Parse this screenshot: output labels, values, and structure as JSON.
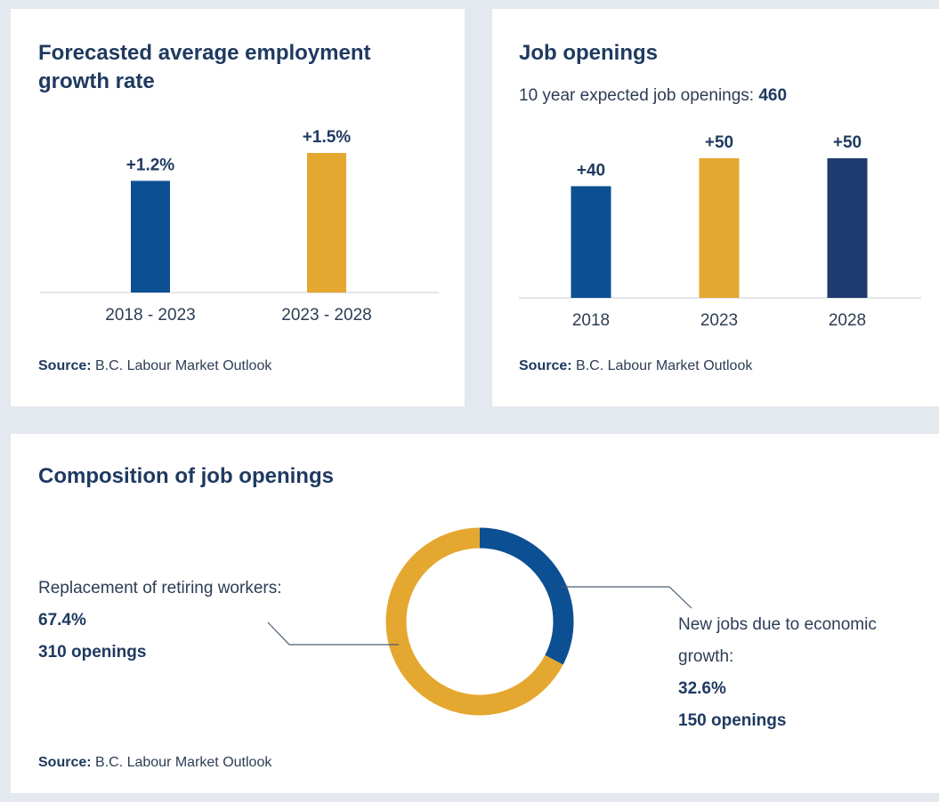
{
  "cards": {
    "growth": {
      "title_line1": "Forecasted average employment",
      "title_line2": "growth rate",
      "source_label": "Source:",
      "source_text": " B.C. Labour Market Outlook"
    },
    "openings": {
      "title": "Job openings",
      "subtitle_prefix": "10 year expected job openings: ",
      "subtitle_value": "460",
      "source_label": "Source:",
      "source_text": " B.C. Labour Market Outlook"
    },
    "composition": {
      "title": "Composition of job openings",
      "source_label": "Source:",
      "source_text": " B.C. Labour Market Outlook"
    }
  },
  "chart_data": [
    {
      "type": "bar",
      "title": "Forecasted average employment growth rate",
      "categories": [
        "2018 - 2023",
        "2023 - 2028"
      ],
      "values": [
        1.2,
        1.5
      ],
      "value_labels": [
        "+1.2%",
        "+1.5%"
      ],
      "colors": [
        "#0c4f92",
        "#e4a72f"
      ],
      "ylim": [
        0,
        1.5
      ],
      "grid": false
    },
    {
      "type": "bar",
      "title": "Job openings",
      "categories": [
        "2018",
        "2023",
        "2028"
      ],
      "values": [
        40,
        50,
        50
      ],
      "value_labels": [
        "+40",
        "+50",
        "+50"
      ],
      "colors": [
        "#0c4f92",
        "#e4a72f",
        "#1f3a6e"
      ],
      "ylim": [
        0,
        50
      ],
      "grid": false
    },
    {
      "type": "pie",
      "title": "Composition of job openings",
      "slices": [
        {
          "label": "New jobs due to economic growth:",
          "line1": "New jobs due to economic",
          "line2": "growth:",
          "percent_label": "32.6%",
          "openings_label": "150 openings",
          "value": 32.6,
          "color": "#0c4f92"
        },
        {
          "label": "Replacement of retiring workers:",
          "percent_label": "67.4%",
          "openings_label": "310 openings",
          "value": 67.4,
          "color": "#e4a72f"
        }
      ]
    }
  ]
}
